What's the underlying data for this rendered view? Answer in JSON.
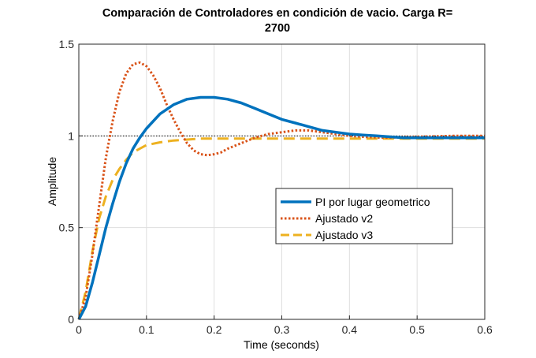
{
  "chart_data": {
    "type": "line",
    "title_line1": "Comparación de Controladores en condición de vacio. Carga R=",
    "title_line2": "2700",
    "xlabel": "Time (seconds)",
    "ylabel": "Amplitude",
    "xlim": [
      0,
      0.6
    ],
    "ylim": [
      0,
      1.5
    ],
    "xticks": [
      0,
      0.1,
      0.2,
      0.3,
      0.4,
      0.5,
      0.6
    ],
    "xtick_labels": [
      "0",
      "0.1",
      "0.2",
      "0.3",
      "0.4",
      "0.5",
      "0.6"
    ],
    "yticks": [
      0,
      0.5,
      1,
      1.5
    ],
    "ytick_labels": [
      "0",
      "0.5",
      "1",
      "1.5"
    ],
    "grid": true,
    "reference_line": 1,
    "legend_position": "center-right",
    "series": [
      {
        "name": "PI por lugar geometrico",
        "color": "#0072BD",
        "style": "solid",
        "x": [
          0,
          0.01,
          0.02,
          0.03,
          0.04,
          0.05,
          0.06,
          0.07,
          0.08,
          0.09,
          0.1,
          0.12,
          0.14,
          0.16,
          0.18,
          0.2,
          0.22,
          0.24,
          0.26,
          0.28,
          0.3,
          0.32,
          0.34,
          0.36,
          0.38,
          0.4,
          0.42,
          0.44,
          0.46,
          0.48,
          0.5,
          0.52,
          0.54,
          0.56,
          0.58,
          0.6
        ],
        "y": [
          0,
          0.07,
          0.2,
          0.35,
          0.5,
          0.63,
          0.75,
          0.85,
          0.93,
          0.99,
          1.04,
          1.12,
          1.17,
          1.2,
          1.21,
          1.21,
          1.2,
          1.18,
          1.15,
          1.12,
          1.09,
          1.07,
          1.05,
          1.03,
          1.02,
          1.01,
          1.005,
          1.0,
          0.995,
          0.99,
          0.99,
          0.99,
          0.99,
          0.99,
          0.99,
          0.99
        ]
      },
      {
        "name": "Ajustado v2",
        "color": "#D95319",
        "style": "dotted",
        "x": [
          0,
          0.01,
          0.02,
          0.03,
          0.04,
          0.05,
          0.06,
          0.07,
          0.08,
          0.09,
          0.1,
          0.11,
          0.12,
          0.13,
          0.14,
          0.15,
          0.16,
          0.17,
          0.18,
          0.19,
          0.2,
          0.21,
          0.22,
          0.24,
          0.26,
          0.28,
          0.3,
          0.32,
          0.34,
          0.36,
          0.38,
          0.4,
          0.42,
          0.45,
          0.5,
          0.55,
          0.6
        ],
        "y": [
          0,
          0.12,
          0.35,
          0.62,
          0.88,
          1.08,
          1.24,
          1.34,
          1.39,
          1.4,
          1.38,
          1.33,
          1.26,
          1.17,
          1.09,
          1.02,
          0.96,
          0.92,
          0.9,
          0.895,
          0.9,
          0.91,
          0.93,
          0.96,
          0.99,
          1.01,
          1.02,
          1.03,
          1.03,
          1.02,
          1.01,
          1.0,
          0.995,
          0.99,
          0.995,
          1.0,
          1.0
        ]
      },
      {
        "name": "Ajustado v3",
        "color": "#EDB120",
        "style": "dashed",
        "x": [
          0,
          0.01,
          0.02,
          0.03,
          0.04,
          0.05,
          0.06,
          0.07,
          0.08,
          0.09,
          0.1,
          0.12,
          0.14,
          0.16,
          0.18,
          0.2,
          0.25,
          0.3,
          0.35,
          0.4,
          0.45,
          0.5,
          0.55,
          0.6
        ],
        "y": [
          0,
          0.15,
          0.37,
          0.55,
          0.67,
          0.76,
          0.82,
          0.87,
          0.91,
          0.93,
          0.95,
          0.965,
          0.975,
          0.98,
          0.985,
          0.985,
          0.985,
          0.985,
          0.985,
          0.985,
          0.985,
          0.985,
          0.985,
          0.985
        ]
      }
    ]
  }
}
